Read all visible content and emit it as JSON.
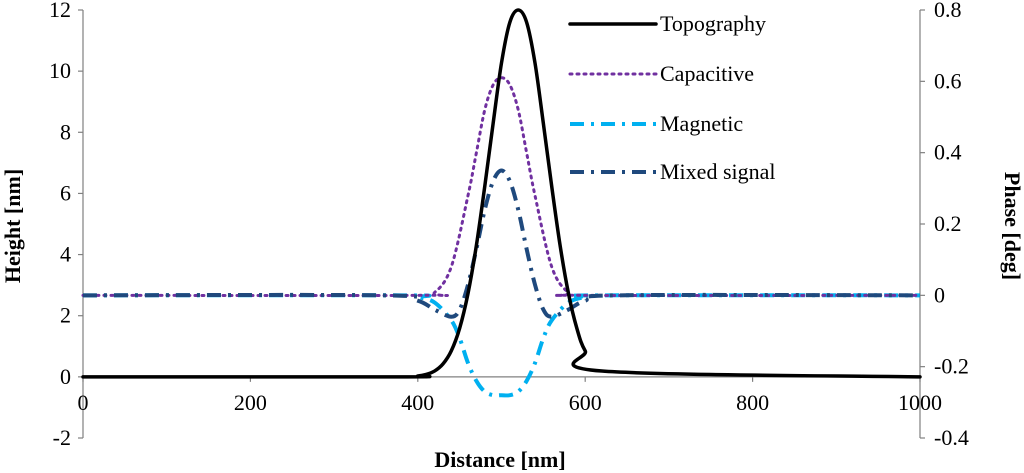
{
  "chart_data": {
    "type": "line",
    "xlabel": "Distance [nm]",
    "ylabel": "Height [nm]",
    "y2label": "Phase [deg]",
    "xlim": [
      0,
      1000
    ],
    "ylim": [
      -2,
      12
    ],
    "y2lim": [
      -0.4,
      0.8
    ],
    "x_ticks": [
      "0",
      "200",
      "400",
      "600",
      "800",
      "1000"
    ],
    "y_ticks": [
      "-2",
      "0",
      "2",
      "4",
      "6",
      "8",
      "10",
      "12"
    ],
    "y2_ticks": [
      "-0.4",
      "-0.2",
      "0",
      "0.2",
      "0.4",
      "0.6",
      "0.8"
    ],
    "grid": false,
    "legend_position": "top-right",
    "series": [
      {
        "name": "Topography",
        "axis": "left",
        "style": "solid",
        "color": "#000000",
        "x": [
          0,
          380,
          400,
          410,
          420,
          430,
          440,
          450,
          460,
          470,
          480,
          490,
          500,
          510,
          520,
          530,
          540,
          550,
          560,
          570,
          580,
          590,
          600,
          620,
          1000
        ],
        "y": [
          0,
          0,
          0.03,
          0.08,
          0.19,
          0.42,
          0.85,
          1.59,
          2.73,
          4.3,
          6.23,
          8.29,
          10.27,
          11.6,
          12.0,
          11.6,
          10.27,
          8.29,
          6.23,
          4.3,
          2.73,
          1.59,
          0.85,
          0.19,
          0
        ]
      },
      {
        "name": "Capacitive",
        "axis": "right",
        "style": "dotted",
        "color": "#7030a0",
        "x": [
          0,
          400,
          420,
          440,
          460,
          470,
          480,
          490,
          500,
          510,
          520,
          530,
          540,
          560,
          580,
          600,
          1000
        ],
        "y": [
          0,
          0,
          0.008,
          0.08,
          0.28,
          0.4,
          0.52,
          0.59,
          0.61,
          0.59,
          0.52,
          0.4,
          0.28,
          0.08,
          0.008,
          0,
          0
        ]
      },
      {
        "name": "Magnetic",
        "axis": "right",
        "style": "dash-dot",
        "color": "#00b0f0",
        "x": [
          0,
          380,
          400,
          420,
          440,
          450,
          460,
          470,
          480,
          490,
          500,
          510,
          520,
          530,
          540,
          550,
          560,
          580,
          600,
          620,
          1000
        ],
        "y": [
          0,
          0,
          -0.005,
          -0.02,
          -0.07,
          -0.12,
          -0.19,
          -0.24,
          -0.27,
          -0.28,
          -0.28,
          -0.28,
          -0.27,
          -0.24,
          -0.19,
          -0.12,
          -0.07,
          -0.02,
          -0.005,
          0,
          0
        ]
      },
      {
        "name": "Mixed signal",
        "axis": "right",
        "style": "dash-dot",
        "color": "#1f497d",
        "x": [
          0,
          360,
          400,
          420,
          440,
          450,
          460,
          470,
          480,
          490,
          500,
          510,
          520,
          530,
          540,
          550,
          560,
          580,
          600,
          640,
          1000
        ],
        "y": [
          0,
          0,
          -0.015,
          -0.04,
          -0.06,
          -0.04,
          0.03,
          0.13,
          0.24,
          0.32,
          0.35,
          0.32,
          0.24,
          0.13,
          0.03,
          -0.04,
          -0.06,
          -0.04,
          -0.015,
          0,
          0
        ]
      }
    ]
  }
}
